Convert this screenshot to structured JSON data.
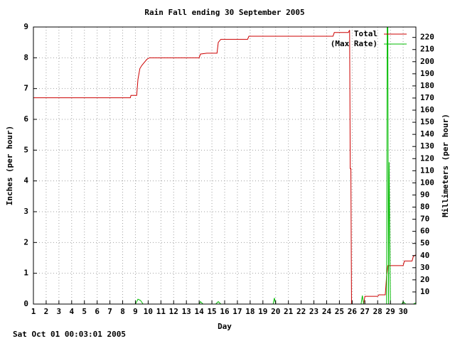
{
  "chart_data": {
    "type": "line",
    "title": "Rain Fall ending 30 September 2005",
    "x_label": "Day",
    "y_label": "Inches (per hour)",
    "y2_label": "Millimeters (per hour)",
    "xlim": [
      1,
      31
    ],
    "xticks": [
      1,
      2,
      3,
      4,
      5,
      6,
      7,
      8,
      9,
      10,
      11,
      12,
      13,
      14,
      15,
      16,
      17,
      18,
      19,
      20,
      21,
      22,
      23,
      24,
      25,
      26,
      27,
      28,
      29,
      30
    ],
    "ylim": [
      0,
      9
    ],
    "yticks": [
      0,
      1,
      2,
      3,
      4,
      5,
      6,
      7,
      8,
      9
    ],
    "y2lim": [
      0,
      228.6
    ],
    "y2ticks": [
      10,
      20,
      30,
      40,
      50,
      60,
      70,
      80,
      90,
      100,
      110,
      120,
      130,
      140,
      150,
      160,
      170,
      180,
      190,
      200,
      210,
      220
    ],
    "grid": true,
    "legend": "upper right",
    "series": [
      {
        "name": "Total",
        "color": "#cc0000",
        "x": [
          1,
          8.6,
          8.65,
          9.1,
          9.2,
          9.35,
          9.5,
          9.7,
          9.9,
          10.1,
          14.0,
          14.1,
          14.6,
          15.4,
          15.5,
          15.7,
          17.8,
          17.9,
          24.5,
          24.6,
          25.7,
          25.8,
          25.85,
          25.9,
          25.95,
          26.9,
          27.0,
          28.0,
          28.1,
          28.6,
          28.7,
          28.8,
          30.0,
          30.1,
          30.7,
          30.8,
          31
        ],
        "values": [
          6.7,
          6.7,
          6.78,
          6.78,
          7.3,
          7.65,
          7.75,
          7.85,
          7.95,
          8.0,
          8.0,
          8.12,
          8.15,
          8.15,
          8.5,
          8.6,
          8.6,
          8.7,
          8.7,
          8.82,
          8.82,
          8.9,
          4.4,
          4.4,
          0,
          0,
          0.25,
          0.25,
          0.3,
          0.3,
          0.9,
          1.25,
          1.25,
          1.4,
          1.4,
          1.55,
          1.6
        ]
      },
      {
        "name": "(Max Rate)",
        "color": "#00bb00",
        "axis": "y2",
        "x": [
          1,
          9.0,
          9.2,
          9.4,
          9.6,
          14.0,
          14.1,
          14.3,
          15.3,
          15.5,
          15.7,
          19.8,
          19.9,
          20.0,
          26.7,
          26.8,
          26.9,
          28.7,
          28.75,
          28.8,
          28.85,
          28.9,
          29.0,
          29.9,
          30.0,
          30.2,
          30.8,
          31
        ],
        "values": [
          0,
          0,
          4,
          3,
          0,
          0,
          2,
          0,
          0,
          2,
          0,
          0,
          5,
          0,
          0,
          7,
          0,
          0,
          228.6,
          228.6,
          0,
          117,
          0,
          0,
          2,
          0,
          0,
          1
        ]
      }
    ]
  },
  "footer": "Sat Oct 01 00:03:01 2005"
}
